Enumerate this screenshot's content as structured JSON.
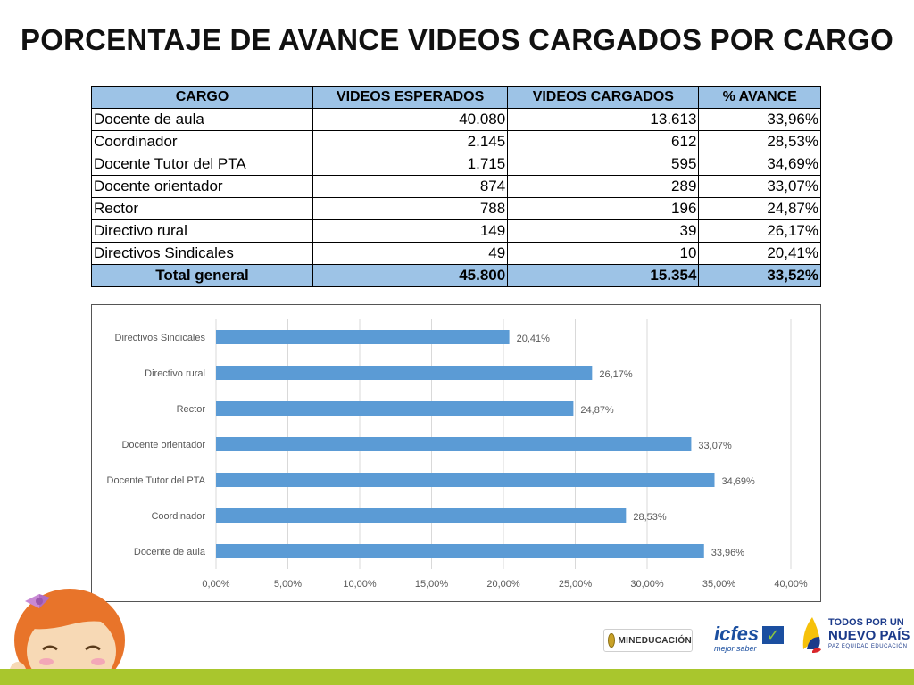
{
  "title": "PORCENTAJE DE AVANCE VIDEOS CARGADOS POR CARGO",
  "table": {
    "headers": [
      "CARGO",
      "VIDEOS ESPERADOS",
      "VIDEOS CARGADOS",
      "% AVANCE"
    ],
    "rows": [
      [
        "Docente de aula",
        "40.080",
        "13.613",
        "33,96%"
      ],
      [
        "Coordinador",
        "2.145",
        "612",
        "28,53%"
      ],
      [
        "Docente Tutor del PTA",
        "1.715",
        "595",
        "34,69%"
      ],
      [
        "Docente orientador",
        "874",
        "289",
        "33,07%"
      ],
      [
        "Rector",
        "788",
        "196",
        "24,87%"
      ],
      [
        "Directivo rural",
        "149",
        "39",
        "26,17%"
      ],
      [
        "Directivos Sindicales",
        "49",
        "10",
        "20,41%"
      ]
    ],
    "total": [
      "Total general",
      "45.800",
      "15.354",
      "33,52%"
    ]
  },
  "chart_data": {
    "type": "bar",
    "orientation": "horizontal",
    "categories": [
      "Directivos Sindicales",
      "Directivo rural",
      "Rector",
      "Docente orientador",
      "Docente Tutor del PTA",
      "Coordinador",
      "Docente de aula"
    ],
    "values": [
      20.41,
      26.17,
      24.87,
      33.07,
      34.69,
      28.53,
      33.96
    ],
    "value_labels": [
      "20,41%",
      "26,17%",
      "24,87%",
      "33,07%",
      "34,69%",
      "28,53%",
      "33,96%"
    ],
    "xlim": [
      0,
      40
    ],
    "xticks": [
      "0,00%",
      "5,00%",
      "10,00%",
      "15,00%",
      "20,00%",
      "25,00%",
      "30,00%",
      "35,00%",
      "40,00%"
    ],
    "grid": true,
    "bar_color": "#5b9bd5"
  },
  "logos": {
    "mineducacion": "MINEDUCACIÓN",
    "icfes": "icfes",
    "icfes_tag": "mejor saber",
    "npais_line1": "TODOS POR UN",
    "npais_line2": "NUEVO PAÍS",
    "npais_line3": "PAZ  EQUIDAD  EDUCACIÓN"
  }
}
